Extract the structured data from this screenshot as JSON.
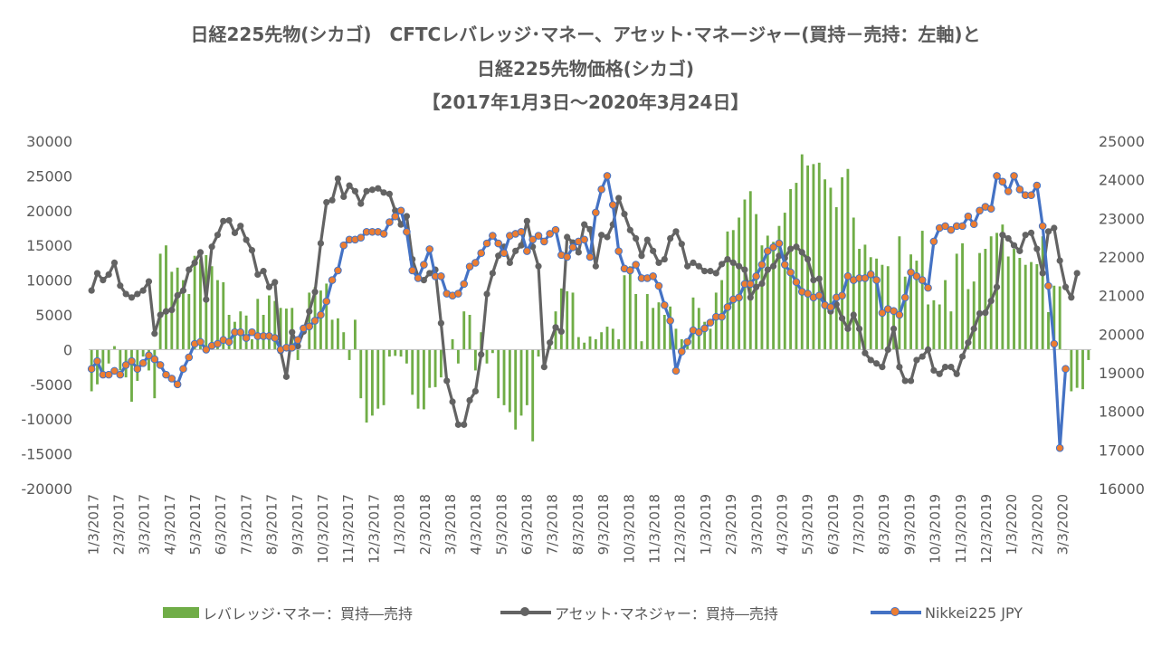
{
  "chart_data": {
    "type": "bar+line",
    "title_lines": [
      "日経225先物(シカゴ)　CFTCレバレッジ･マネー、アセット･マネージャー(買持－売持：左軸)と",
      "日経225先物価格(シカゴ)",
      "【2017年1月3日～2020年3月24日】"
    ],
    "left_axis": {
      "min": -20000,
      "max": 30000,
      "step": 5000
    },
    "right_axis": {
      "min": 16000,
      "max": 25000,
      "step": 1000
    },
    "x_tick_labels": [
      "1/3/2017",
      "2/3/2017",
      "3/3/2017",
      "4/3/2017",
      "5/3/2017",
      "6/3/2017",
      "7/3/2017",
      "8/3/2017",
      "9/3/2017",
      "10/3/2017",
      "11/3/2017",
      "12/3/2017",
      "1/3/2018",
      "2/3/2018",
      "3/3/2018",
      "4/3/2018",
      "5/3/2018",
      "6/3/2018",
      "7/3/2018",
      "8/3/2018",
      "9/3/2018",
      "10/3/2018",
      "11/3/2018",
      "12/3/2018",
      "1/3/2019",
      "2/3/2019",
      "3/3/2019",
      "4/3/2019",
      "5/3/2019",
      "6/3/2019",
      "7/3/2019",
      "8/3/2019",
      "9/3/2019",
      "10/3/2019",
      "11/3/2019",
      "12/3/2019",
      "1/3/2020",
      "2/3/2020",
      "3/3/2020"
    ],
    "colors": {
      "leveraged": "#70AD47",
      "asset": "#636363",
      "nikkei": "#4472C4",
      "marker_fill": "#ED7D31"
    },
    "series": [
      {
        "name": "レバレッジ･マネー：買持―売持",
        "axis": "left",
        "type": "bar",
        "values": [
          -6000,
          -5000,
          -3500,
          -2000,
          500,
          -3000,
          -4000,
          -7500,
          -4500,
          -1000,
          -3000,
          -7000,
          13800,
          15000,
          11200,
          11800,
          10000,
          8000,
          13500,
          13000,
          13600,
          12000,
          10000,
          9700,
          5000,
          4000,
          5500,
          4900,
          1500,
          7300,
          5000,
          7800,
          7000,
          6000,
          5900,
          6000,
          -1500,
          0,
          8200,
          9000,
          8500,
          9500,
          4300,
          4500,
          2500,
          -1500,
          4300,
          -7000,
          -10500,
          -9500,
          -8500,
          -8000,
          -1000,
          -900,
          -1000,
          -2000,
          -6500,
          -8500,
          -8600,
          -5500,
          -5400,
          -4000,
          0,
          1500,
          -2000,
          5500,
          5000,
          -3000,
          2500,
          -2000,
          -500,
          -7000,
          -8000,
          -9000,
          -11500,
          -9500,
          -8000,
          -13200,
          -1000,
          0,
          1000,
          5500,
          8800,
          8400,
          8200,
          1800,
          1000,
          1900,
          1500,
          2500,
          3300,
          3000,
          1500,
          10700,
          12000,
          8000,
          1200,
          8000,
          6000,
          6800,
          5000,
          6200,
          3000,
          1500,
          1000,
          7500,
          6000,
          4000,
          3000,
          8200,
          10000,
          17000,
          17200,
          19000,
          21600,
          22800,
          19500,
          15000,
          16400,
          15500,
          17800,
          19700,
          23100,
          24000,
          28100,
          26500,
          26700,
          26900,
          24500,
          23300,
          20500,
          24800,
          26000,
          19000,
          14500,
          15100,
          13300,
          13100,
          12200,
          12000,
          5500,
          16300,
          10500,
          13700,
          12800,
          17100,
          6500,
          7100,
          6500,
          10000,
          5500,
          13800,
          15300,
          8700,
          9800,
          13900,
          14500,
          16300,
          16800,
          18000,
          13400,
          14500,
          13200,
          12200,
          12600,
          12300,
          16300,
          5400,
          9200,
          9100,
          0,
          -6000,
          -5500,
          -5700,
          -1500
        ]
      },
      {
        "name": "アセット･マネジャー：買持―売持",
        "axis": "left",
        "type": "line",
        "values": [
          8500,
          11000,
          10000,
          10800,
          12500,
          9200,
          8000,
          7500,
          8000,
          8500,
          9800,
          2300,
          5000,
          5500,
          5700,
          7800,
          8500,
          11500,
          12500,
          14000,
          7200,
          14800,
          16500,
          18500,
          18600,
          16800,
          17800,
          15800,
          14300,
          10800,
          11300,
          9000,
          9700,
          -200,
          -3900,
          2500,
          500,
          2600,
          5500,
          8300,
          15300,
          21200,
          21500,
          24600,
          22000,
          23600,
          22800,
          21000,
          22800,
          23000,
          23200,
          22600,
          22400,
          20000,
          18000,
          19200,
          13000,
          10500,
          10000,
          11000,
          11500,
          3800,
          -4500,
          -7500,
          -10800,
          -10800,
          -7300,
          -6000,
          -700,
          8000,
          11000,
          13500,
          14800,
          12500,
          14200,
          15000,
          18500,
          14800,
          12000,
          -2500,
          1000,
          3200,
          2600,
          16200,
          15400,
          14000,
          18000,
          17300,
          12000,
          16500,
          16200,
          18000,
          21800,
          19500,
          17200,
          16000,
          13500,
          15800,
          14200,
          12500,
          13000,
          16000,
          17000,
          15200,
          12000,
          12500,
          12000,
          11300,
          11300,
          11000,
          12300,
          13000,
          12500,
          12000,
          11500,
          7500,
          9000,
          9500,
          11500,
          12000,
          13500,
          13200,
          14500,
          14800,
          14000,
          13000,
          10000,
          10200,
          6500,
          5500,
          6500,
          4500,
          3000,
          5000,
          3000,
          -500,
          -1500,
          -2000,
          -2500,
          0,
          3000,
          -2500,
          -4500,
          -4500,
          -1500,
          -1000,
          0,
          -3000,
          -3500,
          -2500,
          -2500,
          -3500,
          -1000,
          1000,
          3000,
          5200,
          5300,
          7000,
          9000,
          16500,
          16000,
          15000,
          14200,
          16500,
          16800,
          14500,
          11000,
          17000,
          17500,
          12800,
          9000,
          7500,
          11000
        ]
      },
      {
        "name": "Nikkei225 JPY",
        "axis": "right",
        "type": "line",
        "values": [
          19100,
          19300,
          18950,
          18950,
          19050,
          18950,
          19200,
          19300,
          19100,
          19250,
          19450,
          19350,
          19200,
          18950,
          18850,
          18700,
          19100,
          19400,
          19750,
          19800,
          19600,
          19700,
          19750,
          19850,
          19800,
          20050,
          20050,
          19900,
          20050,
          19950,
          19950,
          19950,
          19900,
          19600,
          19650,
          19650,
          19850,
          20150,
          20200,
          20350,
          20500,
          20850,
          21400,
          21650,
          22300,
          22450,
          22450,
          22500,
          22650,
          22650,
          22650,
          22600,
          22900,
          23050,
          23200,
          22650,
          21650,
          21450,
          21800,
          22200,
          21500,
          21500,
          21050,
          21000,
          21050,
          21300,
          21750,
          21850,
          22100,
          22350,
          22550,
          22350,
          22100,
          22550,
          22600,
          22650,
          22150,
          22450,
          22550,
          22400,
          22600,
          22700,
          22050,
          22000,
          22250,
          22400,
          22450,
          22000,
          23150,
          23750,
          24100,
          23350,
          22150,
          21700,
          21650,
          21800,
          21450,
          21450,
          21500,
          21250,
          20750,
          20350,
          19050,
          19550,
          19800,
          20100,
          20050,
          20150,
          20300,
          20450,
          20450,
          20700,
          20900,
          20950,
          21300,
          21300,
          21500,
          21800,
          22150,
          22250,
          22350,
          21800,
          21600,
          21350,
          21100,
          21050,
          20950,
          21000,
          20750,
          20700,
          20950,
          21000,
          21500,
          21400,
          21450,
          21450,
          21550,
          21400,
          20550,
          20650,
          20600,
          20500,
          20950,
          21600,
          21500,
          21400,
          21200,
          22400,
          22750,
          22800,
          22700,
          22800,
          22800,
          23050,
          22850,
          23200,
          23300,
          23250,
          24100,
          23950,
          23700,
          24100,
          23750,
          23600,
          23600,
          23850,
          22800,
          21250,
          19750,
          17050,
          19100
        ]
      }
    ]
  }
}
